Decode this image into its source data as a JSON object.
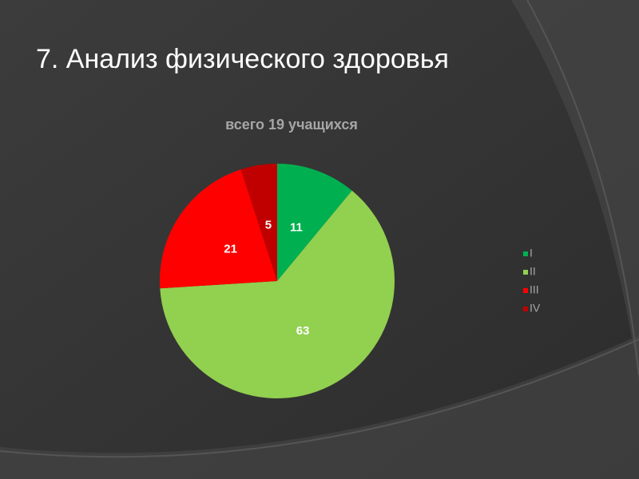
{
  "slide": {
    "title": "7. Анализ физического здоровья"
  },
  "chart_data": {
    "type": "pie",
    "title": "всего 19 учащихся",
    "categories": [
      "I",
      "II",
      "III",
      "IV"
    ],
    "values": [
      11,
      63,
      21,
      5
    ],
    "colors": [
      "#00b050",
      "#92d050",
      "#ff0000",
      "#c00000"
    ],
    "legend": "right",
    "data_labels": true
  }
}
